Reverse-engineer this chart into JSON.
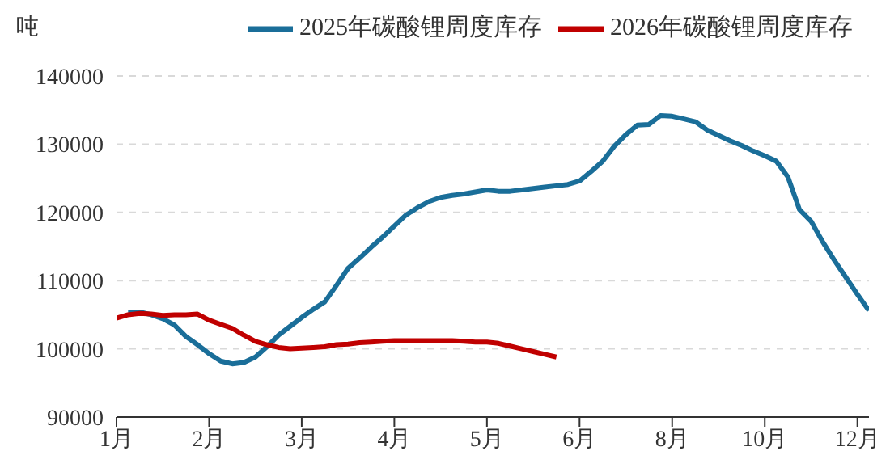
{
  "chart_data": {
    "type": "line",
    "ylabel": "吨",
    "categories": [
      "1月",
      null,
      null,
      null,
      null,
      null,
      null,
      null,
      "2月",
      null,
      null,
      null,
      null,
      null,
      null,
      null,
      "3月",
      null,
      null,
      null,
      null,
      null,
      null,
      null,
      "4月",
      null,
      null,
      null,
      null,
      null,
      null,
      null,
      "5月",
      null,
      null,
      null,
      null,
      null,
      null,
      null,
      "6月",
      null,
      null,
      null,
      null,
      null,
      null,
      null,
      "8月",
      null,
      null,
      null,
      null,
      null,
      null,
      null,
      "10月",
      null,
      null,
      null,
      null,
      null,
      null,
      null,
      "12月",
      null
    ],
    "ylim": [
      90000,
      140000
    ],
    "yticks": [
      90000,
      100000,
      110000,
      120000,
      130000,
      140000
    ],
    "grid": "y",
    "legend": "top right",
    "marker": "none",
    "line_style": "solid",
    "series": [
      {
        "name": "2025年碳酸锂周度库存",
        "color": "#1a6e99",
        "values": [
          null,
          105400,
          105400,
          105000,
          104400,
          103500,
          101800,
          100600,
          99300,
          98200,
          97800,
          98000,
          98800,
          100300,
          102000,
          103300,
          104600,
          105800,
          106900,
          109300,
          111800,
          113300,
          114900,
          116400,
          118000,
          119600,
          120700,
          121600,
          122200,
          122500,
          122700,
          123000,
          123300,
          123100,
          123100,
          123300,
          123500,
          123700,
          123900,
          124100,
          124600,
          126000,
          127500,
          129700,
          131400,
          132800,
          132900,
          134200,
          134100,
          133700,
          133300,
          132100,
          131300,
          130500,
          129800,
          129000,
          128300,
          127500,
          125200,
          120400,
          118700,
          115700,
          113000,
          110500,
          108000,
          105600
        ]
      },
      {
        "name": "2026年碳酸锂周度库存",
        "color": "#c00000",
        "values": [
          104500,
          105000,
          105200,
          105100,
          104900,
          105000,
          105000,
          105100,
          104200,
          103600,
          103000,
          102000,
          101100,
          100600,
          100200,
          100000,
          100100,
          100200,
          100300,
          100600,
          100700,
          100900,
          101000,
          101100,
          101200,
          101200,
          101200,
          101200,
          101200,
          101200,
          101100,
          101000,
          101000,
          100800,
          100400,
          100000,
          99600,
          99200,
          98800,
          null,
          null,
          null,
          null,
          null,
          null,
          null,
          null,
          null,
          null,
          null,
          null,
          null,
          null,
          null,
          null,
          null,
          null,
          null,
          null,
          null,
          null,
          null,
          null,
          null,
          null,
          null
        ]
      }
    ]
  }
}
